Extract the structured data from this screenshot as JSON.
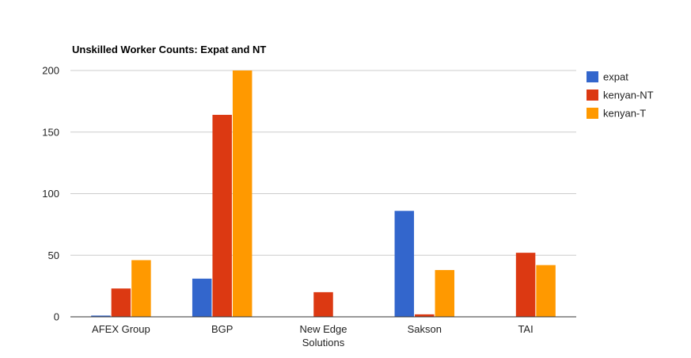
{
  "chart_data": {
    "type": "bar",
    "title": "Unskilled Worker Counts: Expat and NT",
    "xlabel": "",
    "ylabel": "",
    "categories": [
      [
        "AFEX Group"
      ],
      [
        "BGP"
      ],
      [
        "New Edge",
        "Solutions"
      ],
      [
        "Sakson"
      ],
      [
        "TAI"
      ]
    ],
    "series": [
      {
        "name": "expat",
        "color": "#3366cc",
        "values": [
          1,
          31,
          0,
          86,
          0
        ]
      },
      {
        "name": "kenyan-NT",
        "color": "#dc3912",
        "values": [
          23,
          164,
          20,
          2,
          52
        ]
      },
      {
        "name": "kenyan-T",
        "color": "#ff9900",
        "values": [
          46,
          200,
          0,
          38,
          42
        ]
      }
    ],
    "ylim": [
      0,
      200
    ],
    "yticks": [
      "0",
      "50",
      "100",
      "150",
      "200"
    ],
    "grid": true,
    "legend_position": "right"
  }
}
